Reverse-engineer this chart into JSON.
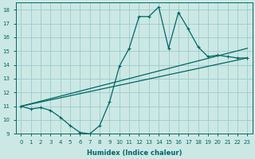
{
  "xlabel": "Humidex (Indice chaleur)",
  "bg_color": "#cce8e4",
  "grid_color": "#99cccc",
  "line_color": "#006666",
  "xlim": [
    -0.5,
    23.5
  ],
  "ylim": [
    9,
    18.5
  ],
  "yticks": [
    9,
    10,
    11,
    12,
    13,
    14,
    15,
    16,
    17,
    18
  ],
  "xticks": [
    0,
    1,
    2,
    3,
    4,
    5,
    6,
    7,
    8,
    9,
    10,
    11,
    12,
    13,
    14,
    15,
    16,
    17,
    18,
    19,
    20,
    21,
    22,
    23
  ],
  "curve1_x": [
    0,
    1,
    2,
    3,
    4,
    5,
    6,
    7,
    8,
    9,
    10,
    11,
    12,
    13,
    14,
    15,
    16,
    17,
    18,
    19,
    20,
    21,
    22,
    23
  ],
  "curve1_y": [
    11.0,
    10.8,
    10.9,
    10.7,
    10.2,
    9.6,
    9.1,
    9.0,
    9.6,
    11.3,
    13.9,
    15.2,
    17.5,
    17.5,
    18.2,
    15.2,
    17.8,
    16.6,
    15.3,
    14.6,
    14.7,
    14.6,
    14.5,
    14.5
  ],
  "curve2_x": [
    0,
    23
  ],
  "curve2_y": [
    11.0,
    15.2
  ],
  "curve3_x": [
    0,
    23
  ],
  "curve3_y": [
    11.0,
    14.5
  ],
  "ylabel_fontsize": 5.5,
  "xlabel_fontsize": 6.0,
  "tick_fontsize": 5.0,
  "linewidth": 0.9,
  "markersize": 3.0
}
